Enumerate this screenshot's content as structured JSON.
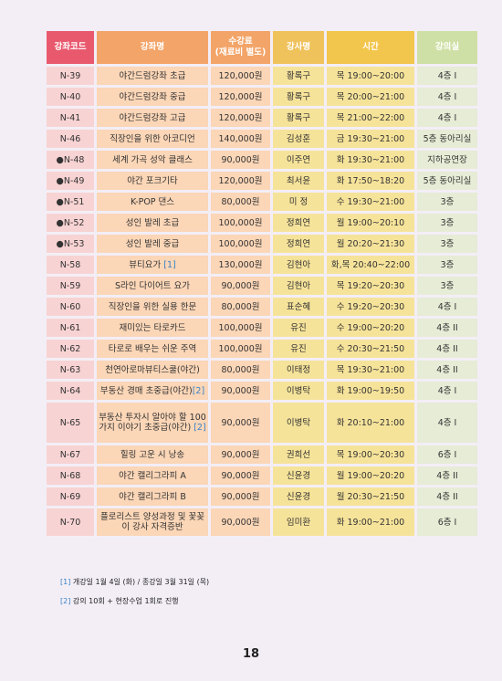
{
  "headers": {
    "code": "강좌코드",
    "name": "강좌명",
    "fee_line1": "수강료",
    "fee_line2": "(재료비 별도)",
    "instructor": "강사명",
    "time": "시간",
    "room": "강의실"
  },
  "rows": [
    {
      "code": "N-39",
      "name": "야간드럼강좌 초급",
      "note": "",
      "fee": "120,000원",
      "instructor": "황록구",
      "time": "목 19:00~20:00",
      "room": "4층 I"
    },
    {
      "code": "N-40",
      "name": "야간드럼강좌 중급",
      "note": "",
      "fee": "120,000원",
      "instructor": "황록구",
      "time": "목 20:00~21:00",
      "room": "4층 I"
    },
    {
      "code": "N-41",
      "name": "야간드럼강좌 고급",
      "note": "",
      "fee": "120,000원",
      "instructor": "황록구",
      "time": "목 21:00~22:00",
      "room": "4층 I"
    },
    {
      "code": "N-46",
      "name": "직장인을 위한 아코디언",
      "note": "",
      "fee": "140,000원",
      "instructor": "김성훈",
      "time": "금 19:30~21:00",
      "room": "5층 동아리실"
    },
    {
      "code": "●N-48",
      "name": "세계 가곡 성악 클래스",
      "note": "",
      "fee": "90,000원",
      "instructor": "이주연",
      "time": "화 19:30~21:00",
      "room": "지하공연장"
    },
    {
      "code": "●N-49",
      "name": "야간 포크기타",
      "note": "",
      "fee": "120,000원",
      "instructor": "최서윤",
      "time": "화 17:50~18:20",
      "room": "5층 동아리실"
    },
    {
      "code": "●N-51",
      "name": "K-POP 댄스",
      "note": "",
      "fee": "80,000원",
      "instructor": "미 정",
      "time": "수 19:30~21:00",
      "room": "3층"
    },
    {
      "code": "●N-52",
      "name": "성인 발레 초급",
      "note": "",
      "fee": "100,000원",
      "instructor": "정희연",
      "time": "월 19:00~20:10",
      "room": "3층"
    },
    {
      "code": "●N-53",
      "name": "성인 발레 중급",
      "note": "",
      "fee": "100,000원",
      "instructor": "정희연",
      "time": "월 20:20~21:30",
      "room": "3층"
    },
    {
      "code": "N-58",
      "name": "뷰티요가 ",
      "note": "[1]",
      "fee": "130,000원",
      "instructor": "김현아",
      "time": "화,목 20:40~22:00",
      "room": "3층"
    },
    {
      "code": "N-59",
      "name": "S라인 다이어트 요가",
      "note": "",
      "fee": "90,000원",
      "instructor": "김현아",
      "time": "목 19:20~20:30",
      "room": "3층"
    },
    {
      "code": "N-60",
      "name": "직장인을 위한 실용 한문",
      "note": "",
      "fee": "80,000원",
      "instructor": "표순혜",
      "time": "수 19:20~20:30",
      "room": "4층 I"
    },
    {
      "code": "N-61",
      "name": "재미있는 타로카드",
      "note": "",
      "fee": "100,000원",
      "instructor": "유진",
      "time": "수 19:00~20:20",
      "room": "4층 II"
    },
    {
      "code": "N-62",
      "name": "타로로 배우는 쉬운 주역",
      "note": "",
      "fee": "100,000원",
      "instructor": "유진",
      "time": "수 20:30~21:50",
      "room": "4층 II"
    },
    {
      "code": "N-63",
      "name": "천연아로마뷰티스쿨(야간)",
      "note": "",
      "fee": "80,000원",
      "instructor": "이태정",
      "time": "목 19:30~21:00",
      "room": "4층 II"
    },
    {
      "code": "N-64",
      "name": "부동산 경매 초중급(야간)",
      "note": "[2]",
      "fee": "90,000원",
      "instructor": "이병탁",
      "time": "화 19:00~19:50",
      "room": "4층 I"
    },
    {
      "code": "N-65",
      "name": "부동산 투자시 알아야 할 100가지 이야기 초중급(야간) ",
      "note": "[2]",
      "fee": "90,000원",
      "instructor": "이병탁",
      "time": "화 20:10~21:00",
      "room": "4층 I"
    },
    {
      "code": "N-67",
      "name": "힐링 고운 시 낭송",
      "note": "",
      "fee": "90,000원",
      "instructor": "권희선",
      "time": "목 19:00~20:30",
      "room": "6층 I"
    },
    {
      "code": "N-68",
      "name": "야간 캘리그라피 A",
      "note": "",
      "fee": "90,000원",
      "instructor": "신윤경",
      "time": "월 19:00~20:20",
      "room": "4층 II"
    },
    {
      "code": "N-69",
      "name": "야간 캘리그라피 B",
      "note": "",
      "fee": "90,000원",
      "instructor": "신윤경",
      "time": "월 20:30~21:50",
      "room": "4층 II"
    },
    {
      "code": "N-70",
      "name": "플로리스트 양성과정 및 꽃꽂이 강사 자격증반",
      "note": "",
      "fee": "90,000원",
      "instructor": "임미환",
      "time": "화 19:00~21:00",
      "room": "6층 I"
    }
  ],
  "notes": [
    {
      "mark": "[1]",
      "text": " 개강일 1월 4일 (화) / 종강일  3월 31일 (목)"
    },
    {
      "mark": "[2]",
      "text": " 강의 10회 + 현장수업 1회로 진행"
    }
  ],
  "page_number": "18",
  "colors": {
    "code_header": "#e9596e",
    "name_header": "#f3a468",
    "instructor_header": "#f0c25c",
    "room_header": "#cfe0a6",
    "footnote_mark": "#3b82c4"
  }
}
